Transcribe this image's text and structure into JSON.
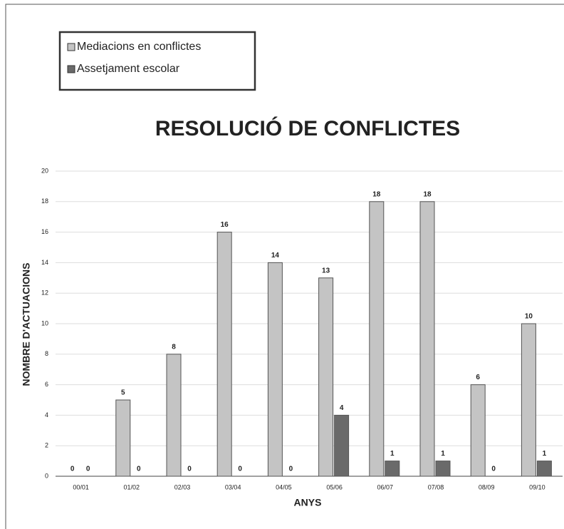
{
  "chart_data": {
    "type": "bar",
    "title": "RESOLUCIÓ DE CONFLICTES",
    "x_label": "ANYS",
    "y_label": "NOMBRE D'ACTUACIONS",
    "categories": [
      "00/01",
      "01/02",
      "02/03",
      "03/04",
      "04/05",
      "05/06",
      "06/07",
      "07/08",
      "08/09",
      "09/10"
    ],
    "series": [
      {
        "name": "Mediacions en conflictes",
        "color": "#c4c4c4",
        "values": [
          0,
          5,
          8,
          16,
          14,
          13,
          18,
          18,
          6,
          10
        ]
      },
      {
        "name": "Assetjament escolar",
        "color": "#6a6a6a",
        "values": [
          0,
          0,
          0,
          0,
          0,
          4,
          1,
          1,
          0,
          1
        ]
      }
    ],
    "ylim": [
      0,
      20
    ],
    "yticks": [
      0,
      2,
      4,
      6,
      8,
      10,
      12,
      14,
      16,
      18,
      20
    ],
    "grid": true,
    "legend": "top-left"
  }
}
